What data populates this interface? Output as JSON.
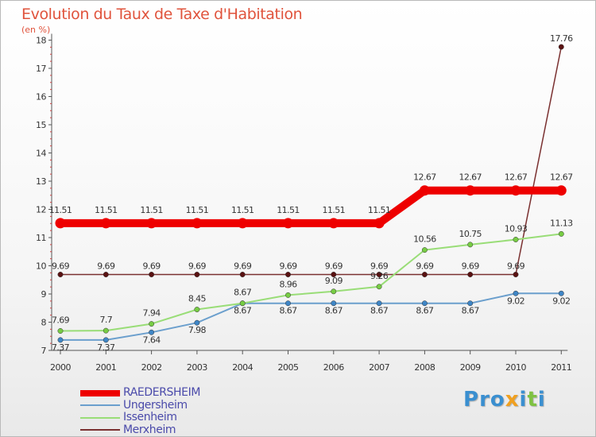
{
  "title": "Evolution du Taux de Taxe d'Habitation",
  "subtitle": "(en %)",
  "logo": {
    "text": "Proxiti",
    "letters": [
      {
        "ch": "P",
        "color": "#3a8fd0"
      },
      {
        "ch": "r",
        "color": "#3a8fd0"
      },
      {
        "ch": "o",
        "color": "#3a8fd0"
      },
      {
        "ch": "x",
        "color": "#f0a020"
      },
      {
        "ch": "i",
        "color": "#3a8fd0"
      },
      {
        "ch": "t",
        "color": "#7fc242"
      },
      {
        "ch": "i",
        "color": "#3a8fd0"
      }
    ]
  },
  "chart_data": {
    "type": "line",
    "x": [
      "2000",
      "2001",
      "2002",
      "2003",
      "2004",
      "2005",
      "2006",
      "2007",
      "2008",
      "2009",
      "2010",
      "2011"
    ],
    "yticks": [
      "7",
      "8",
      "9",
      "10",
      "11",
      "12",
      "13",
      "14",
      "15",
      "16",
      "17",
      "18"
    ],
    "ylim": [
      7,
      18
    ],
    "grid": false,
    "legend_position": "bottom-left",
    "series": [
      {
        "name": "RAEDERSHEIM",
        "color": "#ee0000",
        "values": [
          11.51,
          11.51,
          11.51,
          11.51,
          11.51,
          11.51,
          11.51,
          11.51,
          12.67,
          12.67,
          12.67,
          12.67
        ],
        "labels": [
          "11.51",
          "11.51",
          "11.51",
          "11.51",
          "11.51",
          "11.51",
          "11.51",
          "11.51",
          "12.67",
          "12.67",
          "12.67",
          "12.67"
        ]
      },
      {
        "name": "Ungersheim",
        "color": "#6b9fcd",
        "marker_color": "#3f86c6",
        "values": [
          7.37,
          7.37,
          7.64,
          7.98,
          8.67,
          8.67,
          8.67,
          8.67,
          8.67,
          8.67,
          9.02,
          9.02
        ],
        "labels": [
          "7.37",
          "7.37",
          "7.64",
          "7.98",
          "8.67",
          "8.67",
          "8.67",
          "8.67",
          "8.67",
          "8.67",
          "9.02",
          "9.02"
        ]
      },
      {
        "name": "Issenheim",
        "color": "#99dd77",
        "marker_color": "#77cc44",
        "values": [
          7.69,
          7.7,
          7.94,
          8.45,
          8.67,
          8.96,
          9.09,
          9.26,
          10.56,
          10.75,
          10.93,
          11.13
        ],
        "labels": [
          "7.69",
          "7.7",
          "7.94",
          "8.45",
          "8.67",
          "8.96",
          "9.09",
          "9.26",
          "10.56",
          "10.75",
          "10.93",
          "11.13"
        ]
      },
      {
        "name": "Merxheim",
        "color": "#7a3030",
        "marker_color": "#5a1212",
        "values": [
          9.69,
          9.69,
          9.69,
          9.69,
          9.69,
          9.69,
          9.69,
          9.69,
          9.69,
          9.69,
          9.69,
          17.76
        ],
        "labels": [
          "9.69",
          "9.69",
          "9.69",
          "9.69",
          "9.69",
          "9.69",
          "9.69",
          "9.69",
          "9.69",
          "9.69",
          "9.69",
          "17.76"
        ]
      }
    ]
  }
}
